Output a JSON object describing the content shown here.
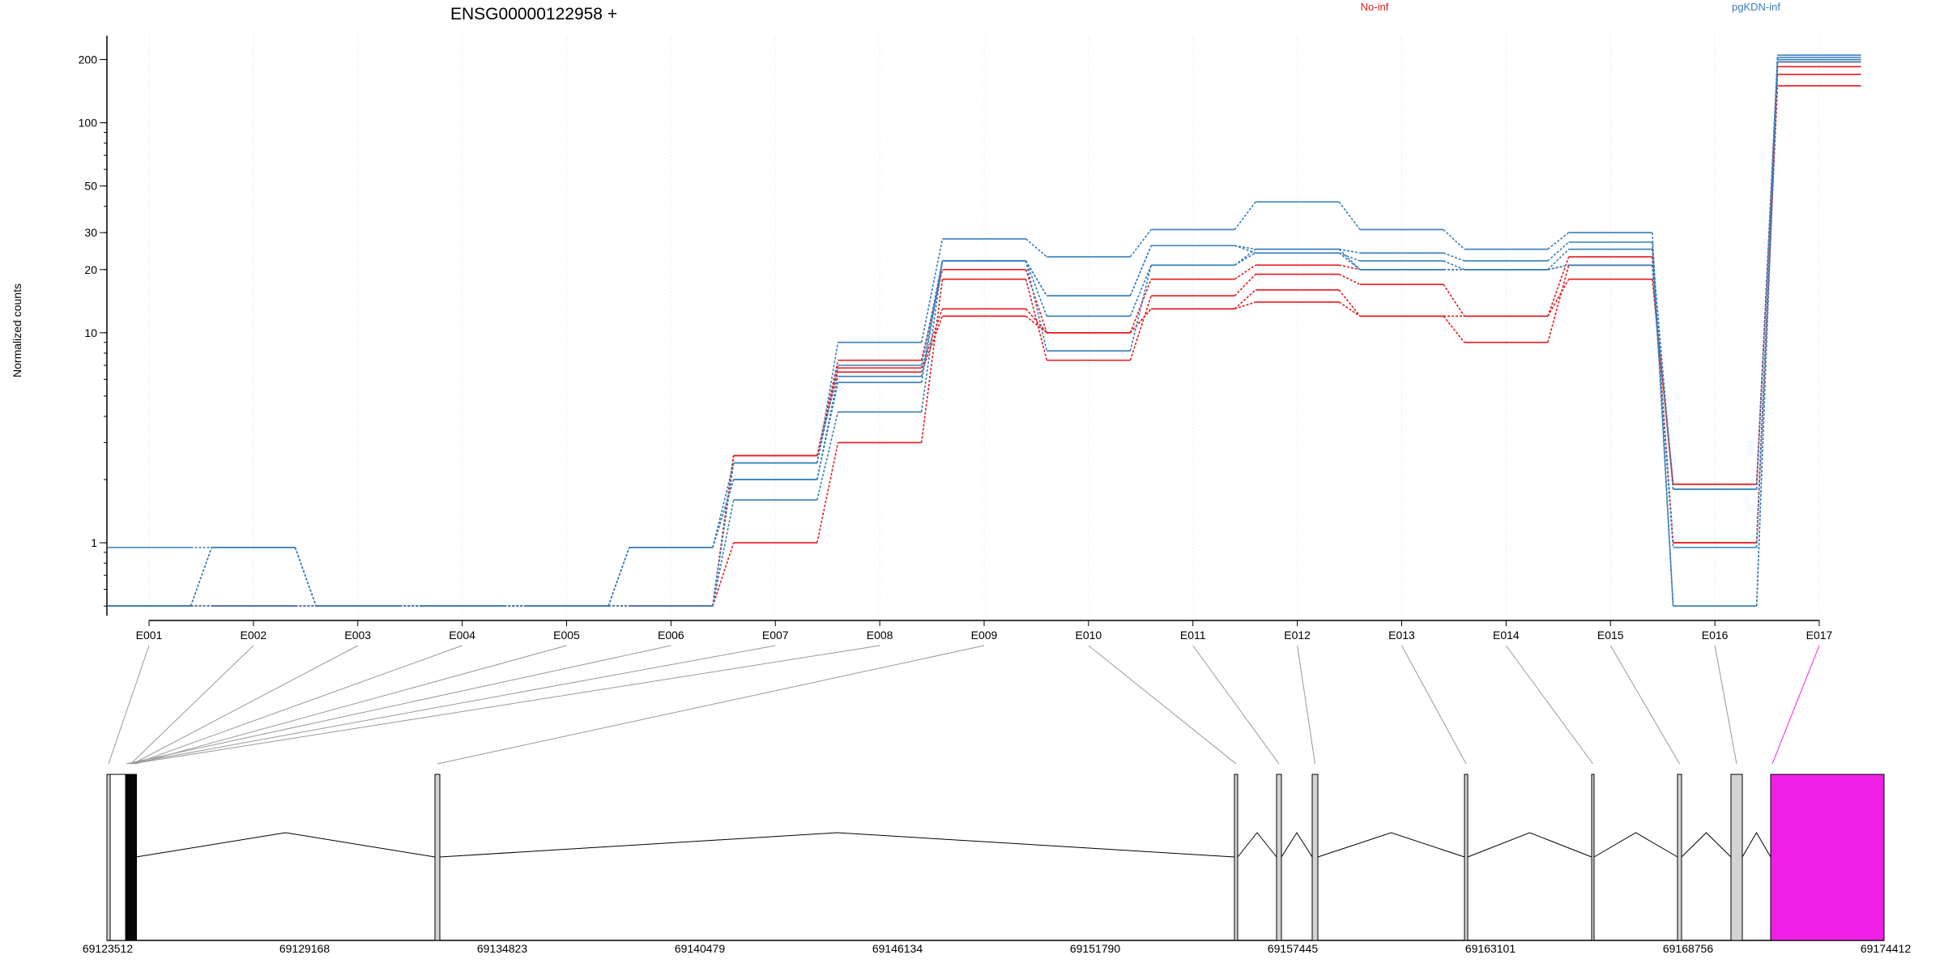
{
  "chart_data": {
    "type": "line",
    "title": "ENSG00000122958 +",
    "ylabel": "Normalized counts",
    "yscale": "log",
    "ylim": [
      0.45,
      260
    ],
    "yticks": [
      1,
      10,
      20,
      30,
      50,
      100,
      200
    ],
    "categories": [
      "E001",
      "E002",
      "E003",
      "E004",
      "E005",
      "E006",
      "E007",
      "E008",
      "E009",
      "E010",
      "E011",
      "E012",
      "E013",
      "E014",
      "E015",
      "E016",
      "E017"
    ],
    "legend": [
      {
        "name": "No-inf",
        "color": "#e41a1c"
      },
      {
        "name": "pgKDN-inf",
        "color": "#377eb8"
      }
    ],
    "series": [
      {
        "group": "No-inf",
        "values": [
          0.5,
          0.5,
          0.5,
          0.5,
          0.5,
          0.5,
          2.6,
          7.4,
          20,
          10,
          18,
          21,
          20,
          20,
          21,
          1.9,
          185
        ]
      },
      {
        "group": "No-inf",
        "values": [
          0.5,
          0.5,
          0.5,
          0.5,
          0.5,
          0.5,
          1.0,
          3.0,
          18,
          7.4,
          15,
          19,
          17,
          12,
          23,
          1.0,
          170
        ]
      },
      {
        "group": "No-inf",
        "values": [
          0.5,
          0.5,
          0.5,
          0.5,
          0.5,
          0.5,
          2.6,
          6.8,
          13,
          10,
          13,
          16,
          12,
          9.0,
          21,
          1.0,
          150
        ]
      },
      {
        "group": "No-inf",
        "values": [
          0.5,
          0.5,
          0.5,
          0.5,
          0.5,
          0.5,
          2.6,
          6.5,
          12,
          10,
          13,
          14,
          12,
          12,
          18,
          1.9,
          195
        ]
      },
      {
        "group": "pgKDN-inf",
        "values": [
          0.95,
          0.95,
          0.5,
          0.5,
          0.5,
          0.95,
          2.4,
          9.0,
          28,
          23,
          31,
          42,
          31,
          25,
          30,
          0.5,
          210
        ]
      },
      {
        "group": "pgKDN-inf",
        "values": [
          0.5,
          0.95,
          0.5,
          0.5,
          0.5,
          0.95,
          2.0,
          6.2,
          22,
          15,
          26,
          25,
          24,
          22,
          27,
          0.5,
          205
        ]
      },
      {
        "group": "pgKDN-inf",
        "values": [
          0.5,
          0.95,
          0.5,
          0.5,
          0.5,
          0.5,
          1.6,
          4.2,
          22,
          12,
          21,
          24,
          22,
          20,
          25,
          1.8,
          200
        ]
      },
      {
        "group": "pgKDN-inf",
        "values": [
          0.5,
          0.5,
          0.5,
          0.5,
          0.5,
          0.5,
          2.4,
          7.0,
          22,
          15,
          26,
          24,
          20,
          20,
          21,
          0.95,
          195
        ]
      },
      {
        "group": "pgKDN-inf",
        "values": [
          0.5,
          0.5,
          0.5,
          0.5,
          0.5,
          0.95,
          2.0,
          5.8,
          22,
          8.2,
          21,
          25,
          20,
          20,
          21,
          1.8,
          205
        ]
      }
    ],
    "gene_model": {
      "coordinate_labels": [
        "69123512",
        "69129168",
        "69134823",
        "69140479",
        "69146134",
        "69151790",
        "69157445",
        "69163101",
        "69168756",
        "69174412"
      ],
      "exon_fill": "#d3d3d3",
      "highlight_fill": "#ef1fe5",
      "highlight_exon": "E017"
    }
  }
}
